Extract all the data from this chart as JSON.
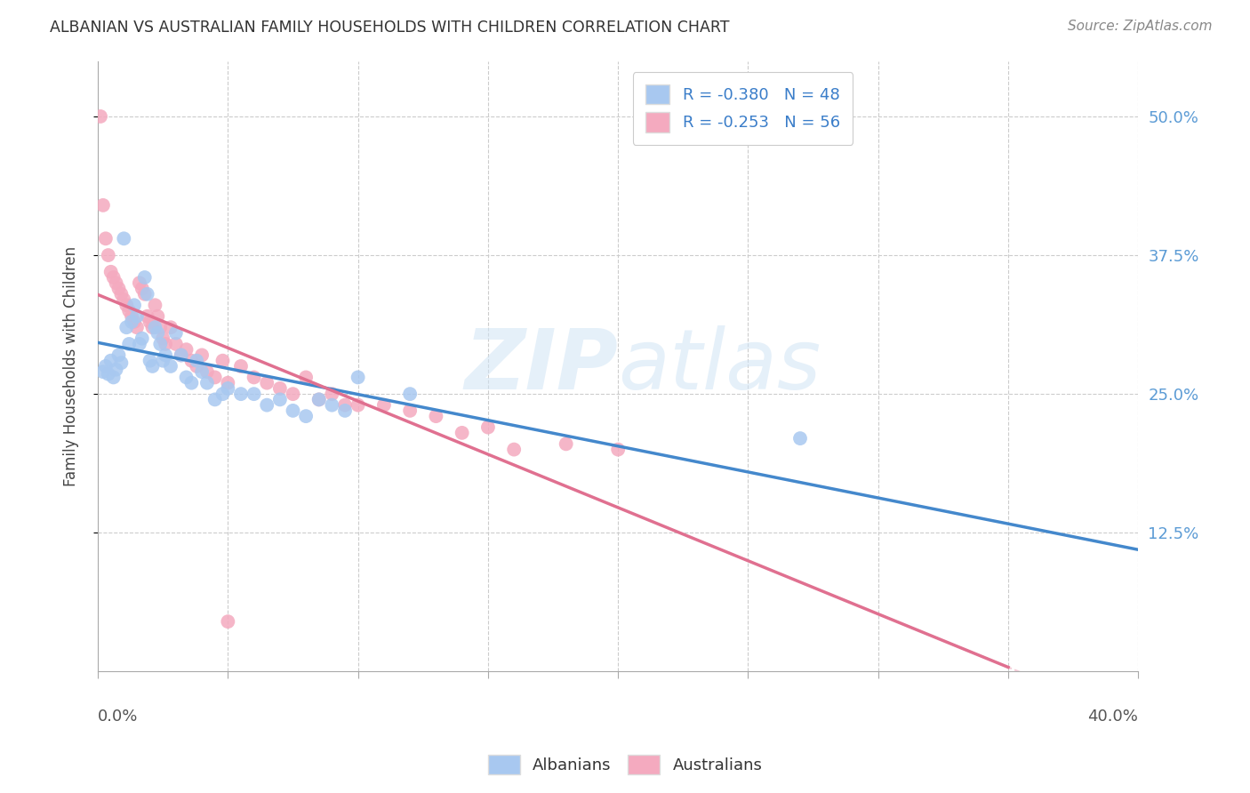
{
  "title": "ALBANIAN VS AUSTRALIAN FAMILY HOUSEHOLDS WITH CHILDREN CORRELATION CHART",
  "source": "Source: ZipAtlas.com",
  "ylabel": "Family Households with Children",
  "ytick_labels": [
    "50.0%",
    "37.5%",
    "25.0%",
    "12.5%"
  ],
  "ytick_values": [
    0.5,
    0.375,
    0.25,
    0.125
  ],
  "xmin": 0.0,
  "xmax": 0.4,
  "ymin": 0.0,
  "ymax": 0.55,
  "albanians_R": -0.38,
  "albanians_N": 48,
  "australians_R": -0.253,
  "australians_N": 56,
  "albanian_color": "#A8C8F0",
  "australian_color": "#F4AABF",
  "albanian_line_color": "#4488CC",
  "australian_line_color": "#E07090",
  "albanian_scatter_x": [
    0.002,
    0.003,
    0.004,
    0.005,
    0.006,
    0.007,
    0.008,
    0.009,
    0.01,
    0.011,
    0.012,
    0.013,
    0.014,
    0.015,
    0.016,
    0.017,
    0.018,
    0.019,
    0.02,
    0.021,
    0.022,
    0.023,
    0.024,
    0.025,
    0.026,
    0.028,
    0.03,
    0.032,
    0.034,
    0.036,
    0.038,
    0.04,
    0.042,
    0.045,
    0.048,
    0.05,
    0.055,
    0.06,
    0.065,
    0.07,
    0.075,
    0.08,
    0.085,
    0.09,
    0.095,
    0.1,
    0.12,
    0.27
  ],
  "albanian_scatter_y": [
    0.27,
    0.275,
    0.268,
    0.28,
    0.265,
    0.272,
    0.285,
    0.278,
    0.39,
    0.31,
    0.295,
    0.315,
    0.33,
    0.32,
    0.295,
    0.3,
    0.355,
    0.34,
    0.28,
    0.275,
    0.31,
    0.305,
    0.295,
    0.28,
    0.285,
    0.275,
    0.305,
    0.285,
    0.265,
    0.26,
    0.28,
    0.27,
    0.26,
    0.245,
    0.25,
    0.255,
    0.25,
    0.25,
    0.24,
    0.245,
    0.235,
    0.23,
    0.245,
    0.24,
    0.235,
    0.265,
    0.25,
    0.21
  ],
  "australian_scatter_x": [
    0.001,
    0.002,
    0.003,
    0.004,
    0.005,
    0.006,
    0.007,
    0.008,
    0.009,
    0.01,
    0.011,
    0.012,
    0.013,
    0.014,
    0.015,
    0.016,
    0.017,
    0.018,
    0.019,
    0.02,
    0.021,
    0.022,
    0.023,
    0.024,
    0.025,
    0.026,
    0.028,
    0.03,
    0.032,
    0.034,
    0.036,
    0.038,
    0.04,
    0.042,
    0.045,
    0.048,
    0.05,
    0.055,
    0.06,
    0.065,
    0.07,
    0.075,
    0.08,
    0.085,
    0.09,
    0.095,
    0.1,
    0.11,
    0.12,
    0.13,
    0.14,
    0.15,
    0.16,
    0.18,
    0.2,
    0.05
  ],
  "australian_scatter_y": [
    0.5,
    0.42,
    0.39,
    0.375,
    0.36,
    0.355,
    0.35,
    0.345,
    0.34,
    0.335,
    0.33,
    0.325,
    0.32,
    0.315,
    0.31,
    0.35,
    0.345,
    0.34,
    0.32,
    0.315,
    0.31,
    0.33,
    0.32,
    0.31,
    0.3,
    0.295,
    0.31,
    0.295,
    0.285,
    0.29,
    0.28,
    0.275,
    0.285,
    0.27,
    0.265,
    0.28,
    0.26,
    0.275,
    0.265,
    0.26,
    0.255,
    0.25,
    0.265,
    0.245,
    0.25,
    0.24,
    0.24,
    0.24,
    0.235,
    0.23,
    0.215,
    0.22,
    0.2,
    0.205,
    0.2,
    0.045
  ],
  "watermark_zip": "ZIP",
  "watermark_atlas": "atlas",
  "background_color": "#FFFFFF",
  "grid_color": "#CCCCCC"
}
